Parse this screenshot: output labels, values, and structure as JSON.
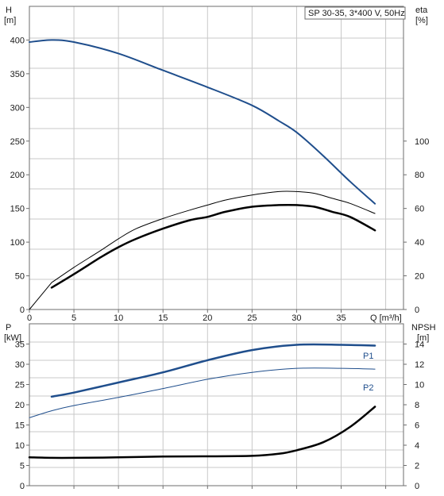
{
  "chart_data": [
    {
      "type": "line",
      "title": "SP 30-35, 3*400 V, 50Hz",
      "xlabel": "Q [m³/h]",
      "x_ticks": [
        "0",
        "5",
        "10",
        "15",
        "20",
        "25",
        "30",
        "35"
      ],
      "xlim": [
        0,
        42
      ],
      "left_axis": {
        "label_line1": "H",
        "label_line2": "[m]",
        "ylim": [
          0,
          450
        ],
        "ticks": [
          "0",
          "50",
          "100",
          "150",
          "200",
          "250",
          "300",
          "350",
          "400"
        ]
      },
      "right_axis": {
        "label_line1": "eta",
        "label_line2": "[%]",
        "ylim": [
          0,
          180
        ],
        "ticks": [
          "0",
          "20",
          "40",
          "60",
          "80",
          "100"
        ]
      },
      "grid": true,
      "series": [
        {
          "axis": "left",
          "color": "#1f4e8c",
          "width": 2,
          "x": [
            0,
            2.5,
            5,
            10,
            15,
            20,
            25,
            28,
            30,
            33,
            36,
            38.8
          ],
          "y": [
            397,
            400,
            397,
            380,
            355,
            330,
            303,
            280,
            263,
            228,
            190,
            157
          ]
        },
        {
          "axis": "right",
          "color": "#000000",
          "width": 1,
          "x": [
            2.5,
            5,
            8,
            10,
            12,
            15,
            18,
            20,
            22,
            25,
            28,
            30,
            32,
            34,
            36,
            38.8
          ],
          "y": [
            16,
            25,
            35,
            42,
            48,
            54,
            59,
            62,
            65,
            68,
            70,
            70,
            69,
            66,
            63,
            57
          ]
        },
        {
          "axis": "right",
          "color": "#000000",
          "width": 2.5,
          "x": [
            2.5,
            5,
            8,
            10,
            12,
            15,
            18,
            20,
            22,
            25,
            28,
            30,
            32,
            34,
            36,
            38.8
          ],
          "y": [
            13,
            21,
            31,
            37,
            42,
            48,
            53,
            55,
            58,
            61,
            62,
            62,
            61,
            58,
            55,
            47
          ]
        }
      ]
    },
    {
      "type": "line",
      "xlim": [
        0,
        42
      ],
      "left_axis": {
        "label_line1": "P",
        "label_line2": "[kW]",
        "ylim": [
          0,
          40
        ],
        "ticks": [
          "0",
          "5",
          "10",
          "15",
          "20",
          "25",
          "30",
          "35"
        ]
      },
      "right_axis": {
        "label_line1": "NPSH",
        "label_line2": "[m]",
        "ylim": [
          0,
          16
        ],
        "ticks": [
          "0",
          "2",
          "4",
          "6",
          "8",
          "10",
          "12",
          "14"
        ]
      },
      "grid": true,
      "series": [
        {
          "name": "P1",
          "axis": "left",
          "color": "#1f4e8c",
          "width": 2.5,
          "x": [
            2.5,
            5,
            10,
            15,
            20,
            25,
            30,
            35,
            38.8
          ],
          "y": [
            22,
            23,
            25.5,
            28,
            31,
            33.5,
            34.8,
            34.8,
            34.6
          ]
        },
        {
          "name": "P2",
          "axis": "left",
          "color": "#1f4e8c",
          "width": 1,
          "x": [
            0,
            2.5,
            5,
            10,
            15,
            20,
            25,
            30,
            35,
            38.8
          ],
          "y": [
            16.8,
            18.5,
            19.8,
            21.8,
            24,
            26.3,
            28,
            29,
            29,
            28.8
          ]
        },
        {
          "axis": "right",
          "color": "#000000",
          "width": 2.5,
          "x": [
            0,
            2.5,
            5,
            10,
            15,
            20,
            25,
            28,
            30,
            33,
            36,
            38.8
          ],
          "y": [
            2.8,
            2.75,
            2.75,
            2.8,
            2.88,
            2.9,
            2.95,
            3.15,
            3.5,
            4.3,
            5.8,
            7.8
          ]
        }
      ]
    }
  ]
}
